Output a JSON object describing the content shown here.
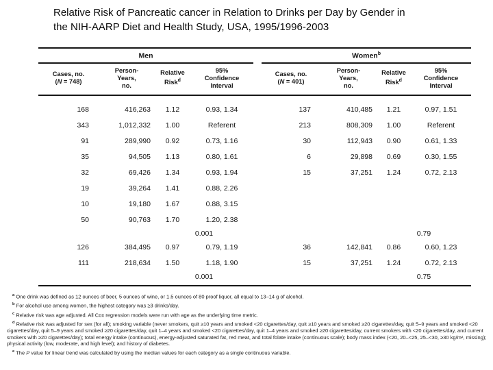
{
  "title": {
    "line1": "Relative Risk of Pancreatic cancer in Relation to Drinks per Day by Gender in",
    "line2": "the NIH-AARP Diet and Health Study, USA, 1995/1996-2003"
  },
  "table": {
    "group_headers": [
      {
        "label": "Men",
        "sup": ""
      },
      {
        "label": "Women",
        "sup": "b"
      }
    ],
    "column_headers": [
      {
        "lines": [
          "Cases, no.",
          "(N = 748)"
        ],
        "sup": ""
      },
      {
        "lines": [
          "Person-",
          "Years,",
          "no."
        ],
        "sup": ""
      },
      {
        "lines": [
          "Relative",
          "Risk"
        ],
        "sup": "d"
      },
      {
        "lines": [
          "95%",
          "Confidence",
          "Interval"
        ],
        "sup": ""
      },
      {
        "lines": [
          "Cases, no.",
          "(N = 401)"
        ],
        "sup": ""
      },
      {
        "lines": [
          "Person-",
          "Years,",
          "no."
        ],
        "sup": ""
      },
      {
        "lines": [
          "Relative",
          "Risk"
        ],
        "sup": "d"
      },
      {
        "lines": [
          "95%",
          "Confidence",
          "Interval"
        ],
        "sup": ""
      }
    ],
    "rows": [
      {
        "type": "data",
        "men": [
          "168",
          "416,263",
          "1.12",
          "0.93, 1.34"
        ],
        "women": [
          "137",
          "410,485",
          "1.21",
          "0.97, 1.51"
        ]
      },
      {
        "type": "data",
        "men": [
          "343",
          "1,012,332",
          "1.00",
          "Referent"
        ],
        "women": [
          "213",
          "808,309",
          "1.00",
          "Referent"
        ]
      },
      {
        "type": "data",
        "men": [
          "91",
          "289,990",
          "0.92",
          "0.73, 1.16"
        ],
        "women": [
          "30",
          "112,943",
          "0.90",
          "0.61, 1.33"
        ]
      },
      {
        "type": "data",
        "men": [
          "35",
          "94,505",
          "1.13",
          "0.80, 1.61"
        ],
        "women": [
          "6",
          "29,898",
          "0.69",
          "0.30, 1.55"
        ]
      },
      {
        "type": "data",
        "men": [
          "32",
          "69,426",
          "1.34",
          "0.93, 1.94"
        ],
        "women": [
          "15",
          "37,251",
          "1.24",
          "0.72, 2.13"
        ]
      },
      {
        "type": "data",
        "men": [
          "19",
          "39,264",
          "1.41",
          "0.88, 2.26"
        ],
        "women": [
          "",
          "",
          "",
          ""
        ]
      },
      {
        "type": "data",
        "men": [
          "10",
          "19,180",
          "1.67",
          "0.88, 3.15"
        ],
        "women": [
          "",
          "",
          "",
          ""
        ]
      },
      {
        "type": "data",
        "men": [
          "50",
          "90,763",
          "1.70",
          "1.20, 2.38"
        ],
        "women": [
          "",
          "",
          "",
          ""
        ]
      },
      {
        "type": "pvalue",
        "men": "0.001",
        "women": "0.79"
      },
      {
        "type": "data",
        "men": [
          "126",
          "384,495",
          "0.97",
          "0.79, 1.19"
        ],
        "women": [
          "36",
          "142,841",
          "0.86",
          "0.60, 1.23"
        ]
      },
      {
        "type": "data",
        "men": [
          "111",
          "218,634",
          "1.50",
          "1.18, 1.90"
        ],
        "women": [
          "15",
          "37,251",
          "1.24",
          "0.72, 2.13"
        ]
      },
      {
        "type": "pvalue",
        "men": "0.001",
        "women": "0.75"
      }
    ]
  },
  "footnotes": [
    {
      "sup": "a",
      "text": "One drink was defined as 12 ounces of beer, 5 ounces of wine, or 1.5 ounces of 80 proof liquor, all equal to 13–14 g of alcohol."
    },
    {
      "sup": "b",
      "text": "For alcohol use among women, the highest category was ≥3 drinks/day."
    },
    {
      "sup": "c",
      "text": "Relative risk was age adjusted. All Cox regression models were run with age as the underlying time metric."
    },
    {
      "sup": "d",
      "text": "Relative risk was adjusted for sex (for all); smoking variable (never smokers, quit ≥10 years and smoked <20 cigarettes/day, quit ≥10 years and smoked ≥20 cigarettes/day, quit 5–9 years and smoked <20 cigarettes/day, quit 5–9 years and smoked ≥20 cigarettes/day, quit 1–4 years and smoked <20 cigarettes/day, quit 1–4 years and smoked ≥20 cigarettes/day, current smokers with <20 cigarettes/day, and current smokers with ≥20 cigarettes/day); total energy intake (continuous), energy-adjusted saturated fat, red meat, and total folate intake (continuous scale); body mass index (<20, 20–<25, 25–<30, ≥30 kg/m², missing); physical activity (low, moderate, and high level); and history of diabetes."
    },
    {
      "sup": "e",
      "text": "The P value for linear trend was calculated by using the median values for each category as a single continuous variable."
    }
  ]
}
